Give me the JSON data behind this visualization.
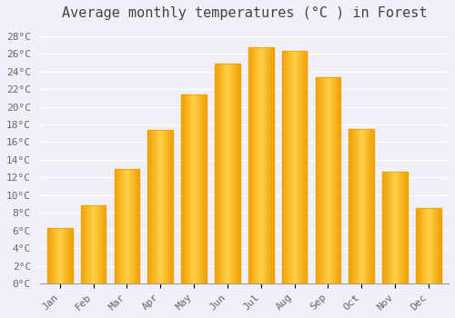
{
  "title": "Average monthly temperatures (°C ) in Forest",
  "months": [
    "Jan",
    "Feb",
    "Mar",
    "Apr",
    "May",
    "Jun",
    "Jul",
    "Aug",
    "Sep",
    "Oct",
    "Nov",
    "Dec"
  ],
  "temperatures": [
    6.3,
    8.8,
    13.0,
    17.4,
    21.4,
    24.9,
    26.7,
    26.3,
    23.4,
    17.5,
    12.7,
    8.5
  ],
  "bar_color_center": "#FFD04A",
  "bar_color_edge": "#F0A000",
  "background_color": "#F0F0F8",
  "plot_bg_color": "#F0F0F8",
  "grid_color": "#FFFFFF",
  "title_color": "#444444",
  "tick_color": "#666666",
  "ylim": [
    0,
    29
  ],
  "yticks": [
    0,
    2,
    4,
    6,
    8,
    10,
    12,
    14,
    16,
    18,
    20,
    22,
    24,
    26,
    28
  ],
  "title_fontsize": 11,
  "tick_fontsize": 8,
  "bar_width": 0.75
}
